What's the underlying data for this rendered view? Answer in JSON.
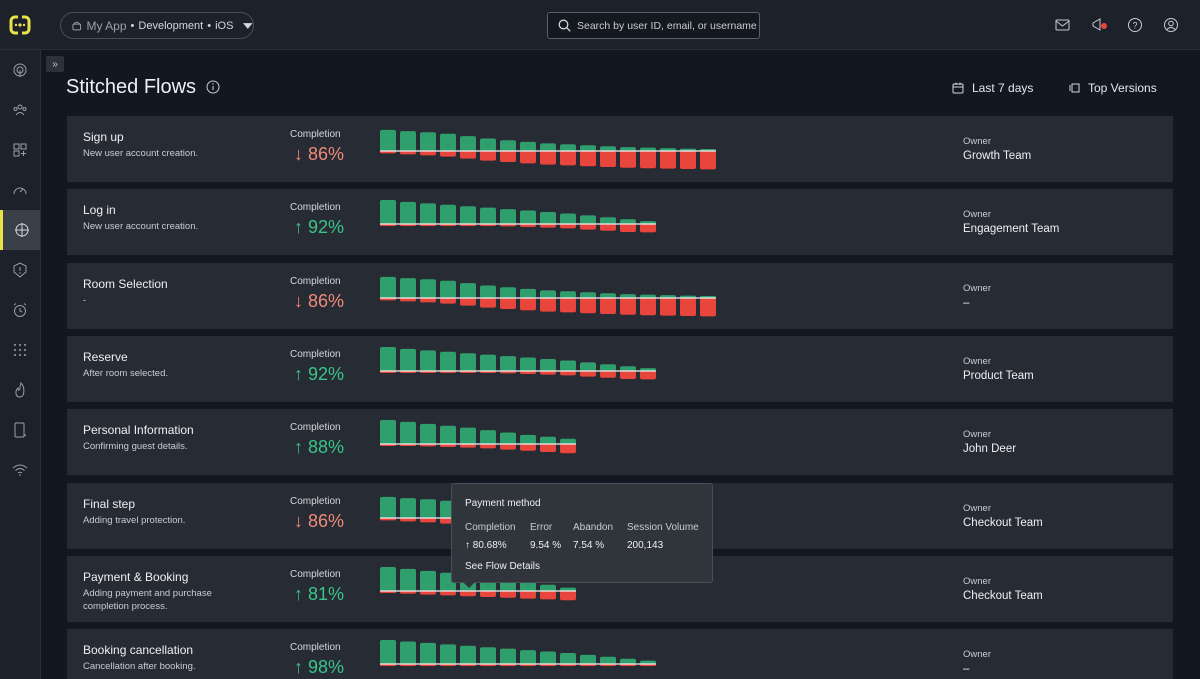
{
  "header": {
    "app_name": "My App",
    "environment": "Development",
    "platform": "iOS",
    "search_placeholder": "Search by user ID, email, or username"
  },
  "page": {
    "title": "Stitched Flows",
    "date_range": "Last 7 days",
    "versions": "Top Versions"
  },
  "colors": {
    "accent": "#e9e34a",
    "success": "#2f9f6e",
    "error": "#e8453c",
    "up_text": "#38c689",
    "down_text": "#f08a7a"
  },
  "flows": [
    {
      "name": "Sign up",
      "description": "New user account creation.",
      "completion_label": "Completion",
      "arrow": "↓",
      "completion": "86%",
      "trend": "down",
      "owner_label": "Owner",
      "owner": "Growth Team",
      "bars": [
        [
          0.88,
          0.12
        ],
        [
          0.83,
          0.17
        ],
        [
          0.78,
          0.22
        ],
        [
          0.72,
          0.28
        ],
        [
          0.62,
          0.38
        ],
        [
          0.52,
          0.48
        ],
        [
          0.45,
          0.55
        ],
        [
          0.38,
          0.62
        ],
        [
          0.32,
          0.68
        ],
        [
          0.28,
          0.72
        ],
        [
          0.24,
          0.76
        ],
        [
          0.2,
          0.8
        ],
        [
          0.16,
          0.84
        ],
        [
          0.14,
          0.86
        ],
        [
          0.12,
          0.88
        ],
        [
          0.1,
          0.9
        ],
        [
          0.08,
          0.92
        ]
      ]
    },
    {
      "name": "Log in",
      "description": "New user account creation.",
      "completion_label": "Completion",
      "arrow": "↑",
      "completion": "92%",
      "trend": "up",
      "owner_label": "Owner",
      "owner": "Engagement Team",
      "bars": [
        [
          1.0,
          0.04
        ],
        [
          0.92,
          0.05
        ],
        [
          0.86,
          0.06
        ],
        [
          0.8,
          0.07
        ],
        [
          0.74,
          0.08
        ],
        [
          0.68,
          0.1
        ],
        [
          0.62,
          0.12
        ],
        [
          0.56,
          0.15
        ],
        [
          0.5,
          0.18
        ],
        [
          0.44,
          0.22
        ],
        [
          0.36,
          0.28
        ],
        [
          0.28,
          0.34
        ],
        [
          0.2,
          0.4
        ],
        [
          0.12,
          0.42
        ]
      ]
    },
    {
      "name": "Room Selection",
      "description": "-",
      "completion_label": "Completion",
      "arrow": "↓",
      "completion": "86%",
      "trend": "down",
      "owner_label": "Owner",
      "owner": "–",
      "bars": [
        [
          0.88,
          0.12
        ],
        [
          0.83,
          0.17
        ],
        [
          0.78,
          0.22
        ],
        [
          0.72,
          0.28
        ],
        [
          0.62,
          0.38
        ],
        [
          0.52,
          0.48
        ],
        [
          0.45,
          0.55
        ],
        [
          0.38,
          0.62
        ],
        [
          0.32,
          0.68
        ],
        [
          0.28,
          0.72
        ],
        [
          0.24,
          0.76
        ],
        [
          0.2,
          0.8
        ],
        [
          0.16,
          0.84
        ],
        [
          0.14,
          0.86
        ],
        [
          0.12,
          0.88
        ],
        [
          0.1,
          0.9
        ],
        [
          0.08,
          0.92
        ]
      ]
    },
    {
      "name": "Reserve",
      "description": "After room selected.",
      "completion_label": "Completion",
      "arrow": "↑",
      "completion": "92%",
      "trend": "up",
      "owner_label": "Owner",
      "owner": "Product Team",
      "bars": [
        [
          1.0,
          0.04
        ],
        [
          0.92,
          0.05
        ],
        [
          0.86,
          0.06
        ],
        [
          0.8,
          0.07
        ],
        [
          0.74,
          0.08
        ],
        [
          0.68,
          0.1
        ],
        [
          0.62,
          0.12
        ],
        [
          0.56,
          0.15
        ],
        [
          0.5,
          0.18
        ],
        [
          0.44,
          0.22
        ],
        [
          0.36,
          0.28
        ],
        [
          0.28,
          0.34
        ],
        [
          0.2,
          0.4
        ],
        [
          0.12,
          0.42
        ]
      ]
    },
    {
      "name": "Personal Information",
      "description": "Confirming guest details.",
      "completion_label": "Completion",
      "arrow": "↑",
      "completion": "88%",
      "trend": "up",
      "owner_label": "Owner",
      "owner": "John Deer",
      "bars": [
        [
          1.0,
          0.08
        ],
        [
          0.92,
          0.1
        ],
        [
          0.84,
          0.12
        ],
        [
          0.76,
          0.15
        ],
        [
          0.68,
          0.18
        ],
        [
          0.58,
          0.22
        ],
        [
          0.48,
          0.28
        ],
        [
          0.38,
          0.34
        ],
        [
          0.3,
          0.4
        ],
        [
          0.22,
          0.46
        ]
      ]
    },
    {
      "name": "Final step",
      "description": "Adding travel protection.",
      "completion_label": "Completion",
      "arrow": "↓",
      "completion": "86%",
      "trend": "down",
      "owner_label": "Owner",
      "owner": "Checkout Team",
      "bars": [
        [
          0.88,
          0.12
        ],
        [
          0.83,
          0.17
        ],
        [
          0.78,
          0.22
        ],
        [
          0.72,
          0.28
        ]
      ]
    },
    {
      "name": "Payment & Booking",
      "description": "Adding payment and purchase completion process.",
      "completion_label": "Completion",
      "arrow": "↑",
      "completion": "81%",
      "trend": "up",
      "owner_label": "Owner",
      "owner": "Checkout Team",
      "bars": [
        [
          1.0,
          0.1
        ],
        [
          0.92,
          0.14
        ],
        [
          0.84,
          0.18
        ],
        [
          0.76,
          0.22
        ],
        [
          0.68,
          0.26
        ],
        [
          0.58,
          0.3
        ],
        [
          0.48,
          0.34
        ],
        [
          0.38,
          0.38
        ],
        [
          0.26,
          0.42
        ],
        [
          0.14,
          0.46
        ]
      ]
    },
    {
      "name": "Booking cancellation",
      "description": "Cancellation after booking.",
      "completion_label": "Completion",
      "arrow": "↑",
      "completion": "98%",
      "trend": "up",
      "owner_label": "Owner",
      "owner": "–",
      "bars": [
        [
          1.0,
          0.02
        ],
        [
          0.94,
          0.02
        ],
        [
          0.88,
          0.03
        ],
        [
          0.82,
          0.03
        ],
        [
          0.76,
          0.04
        ],
        [
          0.7,
          0.04
        ],
        [
          0.64,
          0.05
        ],
        [
          0.58,
          0.05
        ],
        [
          0.52,
          0.06
        ],
        [
          0.46,
          0.06
        ],
        [
          0.38,
          0.07
        ],
        [
          0.3,
          0.07
        ],
        [
          0.22,
          0.08
        ],
        [
          0.14,
          0.08
        ]
      ]
    }
  ],
  "tooltip": {
    "title": "Payment method",
    "completion_label": "Completion",
    "completion_value": "↑ 80.68%",
    "error_label": "Error",
    "error_value": "9.54 %",
    "abandon_label": "Abandon",
    "abandon_value": "7.54 %",
    "volume_label": "Session Volume",
    "volume_value": "200,143",
    "link": "See Flow Details"
  }
}
